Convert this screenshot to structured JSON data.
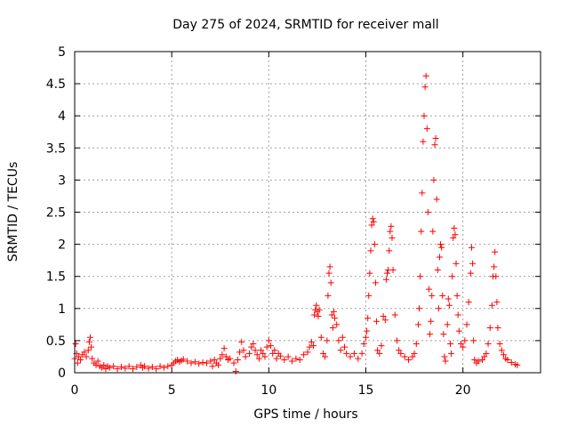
{
  "chart_data": {
    "type": "scatter",
    "title": "Day 275 of 2024, SRMTID for receiver mall",
    "xlabel": "GPS time / hours",
    "ylabel": "SRMTID / TECUs",
    "xlim": [
      0,
      24
    ],
    "ylim": [
      0,
      5
    ],
    "xticks": [
      0,
      5,
      10,
      15,
      20
    ],
    "xtick_labels": [
      "0",
      "5",
      "10",
      "15",
      "20"
    ],
    "yticks": [
      0,
      0.5,
      1,
      1.5,
      2,
      2.5,
      3,
      3.5,
      4,
      4.5,
      5
    ],
    "ytick_labels": [
      "0",
      "0.5",
      "1",
      "1.5",
      "2",
      "2.5",
      "3",
      "3.5",
      "4",
      "4.5",
      "5"
    ],
    "grid": true,
    "marker": "+",
    "color": "#ff0000",
    "series": [
      {
        "name": "mall",
        "points": [
          [
            0.0,
            0.22
          ],
          [
            0.05,
            0.45
          ],
          [
            0.1,
            0.3
          ],
          [
            0.15,
            0.15
          ],
          [
            0.2,
            0.25
          ],
          [
            0.3,
            0.2
          ],
          [
            0.4,
            0.28
          ],
          [
            0.5,
            0.32
          ],
          [
            0.6,
            0.25
          ],
          [
            0.7,
            0.35
          ],
          [
            0.75,
            0.48
          ],
          [
            0.8,
            0.55
          ],
          [
            0.85,
            0.4
          ],
          [
            0.9,
            0.22
          ],
          [
            1.0,
            0.15
          ],
          [
            1.1,
            0.12
          ],
          [
            1.2,
            0.18
          ],
          [
            1.3,
            0.1
          ],
          [
            1.4,
            0.08
          ],
          [
            1.5,
            0.12
          ],
          [
            1.6,
            0.06
          ],
          [
            1.7,
            0.1
          ],
          [
            1.8,
            0.08
          ],
          [
            2.0,
            0.1
          ],
          [
            2.2,
            0.06
          ],
          [
            2.4,
            0.09
          ],
          [
            2.6,
            0.07
          ],
          [
            2.8,
            0.1
          ],
          [
            3.0,
            0.06
          ],
          [
            3.2,
            0.09
          ],
          [
            3.4,
            0.12
          ],
          [
            3.5,
            0.08
          ],
          [
            3.6,
            0.1
          ],
          [
            3.8,
            0.07
          ],
          [
            4.0,
            0.09
          ],
          [
            4.2,
            0.06
          ],
          [
            4.4,
            0.1
          ],
          [
            4.6,
            0.08
          ],
          [
            4.8,
            0.1
          ],
          [
            5.0,
            0.12
          ],
          [
            5.1,
            0.15
          ],
          [
            5.2,
            0.18
          ],
          [
            5.3,
            0.2
          ],
          [
            5.4,
            0.17
          ],
          [
            5.5,
            0.19
          ],
          [
            5.6,
            0.21
          ],
          [
            5.8,
            0.18
          ],
          [
            6.0,
            0.15
          ],
          [
            6.2,
            0.17
          ],
          [
            6.4,
            0.14
          ],
          [
            6.6,
            0.16
          ],
          [
            6.8,
            0.15
          ],
          [
            7.0,
            0.18
          ],
          [
            7.1,
            0.1
          ],
          [
            7.2,
            0.2
          ],
          [
            7.3,
            0.15
          ],
          [
            7.4,
            0.12
          ],
          [
            7.5,
            0.22
          ],
          [
            7.6,
            0.28
          ],
          [
            7.7,
            0.38
          ],
          [
            7.8,
            0.25
          ],
          [
            7.9,
            0.2
          ],
          [
            8.0,
            0.22
          ],
          [
            8.2,
            0.15
          ],
          [
            8.3,
            0.02
          ],
          [
            8.4,
            0.2
          ],
          [
            8.5,
            0.32
          ],
          [
            8.6,
            0.48
          ],
          [
            8.7,
            0.35
          ],
          [
            8.8,
            0.25
          ],
          [
            9.0,
            0.3
          ],
          [
            9.1,
            0.4
          ],
          [
            9.2,
            0.45
          ],
          [
            9.3,
            0.35
          ],
          [
            9.4,
            0.28
          ],
          [
            9.5,
            0.22
          ],
          [
            9.6,
            0.35
          ],
          [
            9.7,
            0.3
          ],
          [
            9.8,
            0.25
          ],
          [
            9.9,
            0.4
          ],
          [
            10.0,
            0.5
          ],
          [
            10.1,
            0.42
          ],
          [
            10.2,
            0.3
          ],
          [
            10.3,
            0.35
          ],
          [
            10.4,
            0.22
          ],
          [
            10.5,
            0.3
          ],
          [
            10.6,
            0.26
          ],
          [
            10.8,
            0.2
          ],
          [
            11.0,
            0.25
          ],
          [
            11.2,
            0.18
          ],
          [
            11.4,
            0.22
          ],
          [
            11.6,
            0.2
          ],
          [
            11.8,
            0.28
          ],
          [
            12.0,
            0.32
          ],
          [
            12.1,
            0.4
          ],
          [
            12.2,
            0.48
          ],
          [
            12.3,
            0.42
          ],
          [
            12.35,
            0.9
          ],
          [
            12.4,
            0.98
          ],
          [
            12.45,
            1.05
          ],
          [
            12.5,
            0.95
          ],
          [
            12.55,
            0.88
          ],
          [
            12.6,
            0.98
          ],
          [
            12.7,
            0.55
          ],
          [
            12.8,
            0.3
          ],
          [
            12.9,
            0.25
          ],
          [
            13.0,
            0.5
          ],
          [
            13.05,
            1.2
          ],
          [
            13.1,
            1.55
          ],
          [
            13.15,
            1.65
          ],
          [
            13.2,
            1.4
          ],
          [
            13.25,
            0.9
          ],
          [
            13.3,
            0.7
          ],
          [
            13.35,
            0.95
          ],
          [
            13.4,
            0.85
          ],
          [
            13.5,
            0.75
          ],
          [
            13.6,
            0.5
          ],
          [
            13.7,
            0.35
          ],
          [
            13.8,
            0.55
          ],
          [
            13.9,
            0.4
          ],
          [
            14.0,
            0.3
          ],
          [
            14.2,
            0.25
          ],
          [
            14.4,
            0.3
          ],
          [
            14.6,
            0.22
          ],
          [
            14.8,
            0.3
          ],
          [
            14.9,
            0.45
          ],
          [
            15.0,
            0.55
          ],
          [
            15.05,
            0.65
          ],
          [
            15.1,
            0.85
          ],
          [
            15.15,
            1.2
          ],
          [
            15.2,
            1.55
          ],
          [
            15.25,
            1.9
          ],
          [
            15.3,
            2.3
          ],
          [
            15.35,
            2.4
          ],
          [
            15.4,
            2.35
          ],
          [
            15.45,
            2.0
          ],
          [
            15.5,
            1.4
          ],
          [
            15.55,
            0.8
          ],
          [
            15.6,
            0.35
          ],
          [
            15.7,
            0.3
          ],
          [
            15.8,
            0.42
          ],
          [
            15.9,
            0.88
          ],
          [
            16.0,
            0.82
          ],
          [
            16.05,
            1.45
          ],
          [
            16.1,
            1.55
          ],
          [
            16.15,
            1.6
          ],
          [
            16.2,
            1.9
          ],
          [
            16.25,
            2.2
          ],
          [
            16.3,
            2.28
          ],
          [
            16.35,
            2.1
          ],
          [
            16.4,
            1.6
          ],
          [
            16.5,
            0.9
          ],
          [
            16.6,
            0.5
          ],
          [
            16.7,
            0.35
          ],
          [
            16.8,
            0.3
          ],
          [
            17.0,
            0.25
          ],
          [
            17.2,
            0.2
          ],
          [
            17.4,
            0.25
          ],
          [
            17.5,
            0.3
          ],
          [
            17.6,
            0.45
          ],
          [
            17.7,
            0.75
          ],
          [
            17.75,
            1.0
          ],
          [
            17.8,
            1.5
          ],
          [
            17.85,
            2.2
          ],
          [
            17.9,
            2.8
          ],
          [
            17.95,
            3.6
          ],
          [
            18.0,
            4.0
          ],
          [
            18.05,
            4.45
          ],
          [
            18.1,
            4.62
          ],
          [
            18.15,
            3.8
          ],
          [
            18.2,
            2.5
          ],
          [
            18.25,
            1.3
          ],
          [
            18.3,
            0.6
          ],
          [
            18.35,
            0.8
          ],
          [
            18.4,
            1.2
          ],
          [
            18.45,
            2.2
          ],
          [
            18.5,
            3.0
          ],
          [
            18.55,
            3.55
          ],
          [
            18.6,
            3.65
          ],
          [
            18.65,
            2.7
          ],
          [
            18.7,
            1.6
          ],
          [
            18.75,
            1.0
          ],
          [
            18.8,
            1.8
          ],
          [
            18.85,
            2.0
          ],
          [
            18.9,
            1.95
          ],
          [
            18.95,
            1.2
          ],
          [
            19.0,
            0.6
          ],
          [
            19.05,
            0.25
          ],
          [
            19.1,
            0.18
          ],
          [
            19.2,
            0.75
          ],
          [
            19.25,
            1.15
          ],
          [
            19.3,
            1.05
          ],
          [
            19.35,
            0.45
          ],
          [
            19.4,
            0.3
          ],
          [
            19.45,
            1.5
          ],
          [
            19.5,
            2.1
          ],
          [
            19.55,
            2.25
          ],
          [
            19.6,
            2.15
          ],
          [
            19.65,
            1.7
          ],
          [
            19.7,
            1.2
          ],
          [
            19.75,
            0.9
          ],
          [
            19.8,
            0.65
          ],
          [
            19.9,
            0.45
          ],
          [
            20.0,
            0.4
          ],
          [
            20.1,
            0.5
          ],
          [
            20.2,
            0.75
          ],
          [
            20.3,
            1.1
          ],
          [
            20.4,
            1.55
          ],
          [
            20.45,
            1.95
          ],
          [
            20.5,
            1.7
          ],
          [
            20.55,
            0.5
          ],
          [
            20.6,
            0.2
          ],
          [
            20.7,
            0.15
          ],
          [
            20.8,
            0.18
          ],
          [
            21.0,
            0.2
          ],
          [
            21.1,
            0.25
          ],
          [
            21.2,
            0.3
          ],
          [
            21.3,
            0.45
          ],
          [
            21.4,
            0.7
          ],
          [
            21.5,
            1.05
          ],
          [
            21.55,
            1.5
          ],
          [
            21.6,
            1.65
          ],
          [
            21.65,
            1.88
          ],
          [
            21.7,
            1.5
          ],
          [
            21.75,
            1.1
          ],
          [
            21.8,
            0.7
          ],
          [
            21.9,
            0.45
          ],
          [
            22.0,
            0.35
          ],
          [
            22.1,
            0.28
          ],
          [
            22.2,
            0.22
          ],
          [
            22.3,
            0.2
          ],
          [
            22.5,
            0.16
          ],
          [
            22.7,
            0.13
          ],
          [
            22.8,
            0.12
          ]
        ]
      }
    ]
  }
}
